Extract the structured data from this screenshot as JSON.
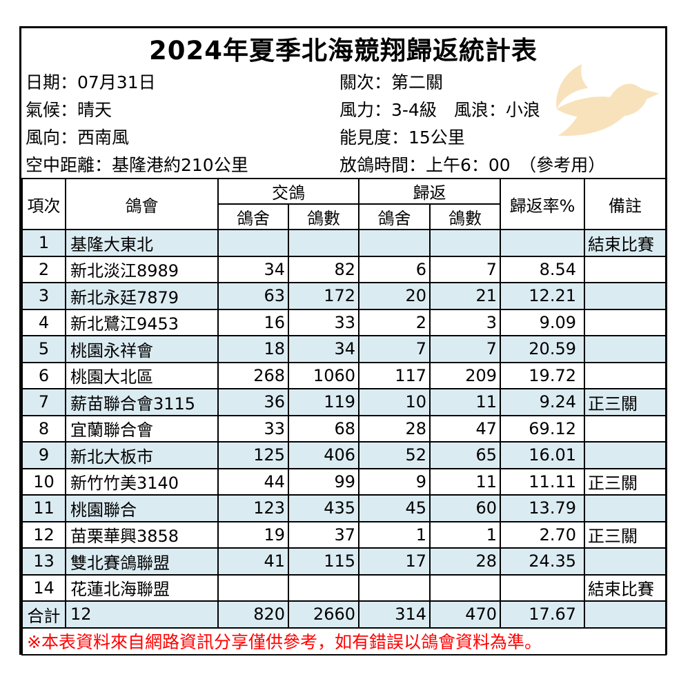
{
  "title": "2024年夏季北海競翔歸返統計表",
  "info": {
    "lines": [
      {
        "left": "日期：07月31日",
        "right": "關次：第二關"
      },
      {
        "left": "氣候：晴天",
        "right": "風力：3-4級　風浪：小浪"
      },
      {
        "left": "風向：西南風",
        "right": "能見度：15公里"
      },
      {
        "left": "空中距離：基隆港約210公里",
        "right": "放鴿時間：上午6：00　（參考用）"
      }
    ]
  },
  "icons": {
    "dove": "flying-dove-silhouette"
  },
  "table": {
    "headers": {
      "index": "項次",
      "club": "鴿會",
      "sent_group": "交鴿",
      "returned_group": "歸返",
      "sub": [
        "鴿舍",
        "鴿數",
        "鴿舍",
        "鴿數"
      ],
      "rate": "歸返率%",
      "note": "備註"
    },
    "rows": [
      {
        "no": "1",
        "club": "基隆大東北",
        "sent_loft": "",
        "sent_count": "",
        "ret_loft": "",
        "ret_count": "",
        "rate": "",
        "note": "結束比賽"
      },
      {
        "no": "2",
        "club": "新北淡江8989",
        "sent_loft": "34",
        "sent_count": "82",
        "ret_loft": "6",
        "ret_count": "7",
        "rate": "8.54",
        "note": ""
      },
      {
        "no": "3",
        "club": "新北永廷7879",
        "sent_loft": "63",
        "sent_count": "172",
        "ret_loft": "20",
        "ret_count": "21",
        "rate": "12.21",
        "note": ""
      },
      {
        "no": "4",
        "club": "新北鷺江9453",
        "sent_loft": "16",
        "sent_count": "33",
        "ret_loft": "2",
        "ret_count": "3",
        "rate": "9.09",
        "note": ""
      },
      {
        "no": "5",
        "club": "桃園永祥會",
        "sent_loft": "18",
        "sent_count": "34",
        "ret_loft": "7",
        "ret_count": "7",
        "rate": "20.59",
        "note": ""
      },
      {
        "no": "6",
        "club": "桃園大北區",
        "sent_loft": "268",
        "sent_count": "1060",
        "ret_loft": "117",
        "ret_count": "209",
        "rate": "19.72",
        "note": ""
      },
      {
        "no": "7",
        "club": "薪苗聯合會3115",
        "sent_loft": "36",
        "sent_count": "119",
        "ret_loft": "10",
        "ret_count": "11",
        "rate": "9.24",
        "note": "正三關"
      },
      {
        "no": "8",
        "club": "宜蘭聯合會",
        "sent_loft": "33",
        "sent_count": "68",
        "ret_loft": "28",
        "ret_count": "47",
        "rate": "69.12",
        "note": ""
      },
      {
        "no": "9",
        "club": "新北大板市",
        "sent_loft": "125",
        "sent_count": "406",
        "ret_loft": "52",
        "ret_count": "65",
        "rate": "16.01",
        "note": ""
      },
      {
        "no": "10",
        "club": "新竹竹美3140",
        "sent_loft": "44",
        "sent_count": "99",
        "ret_loft": "9",
        "ret_count": "11",
        "rate": "11.11",
        "note": "正三關"
      },
      {
        "no": "11",
        "club": "桃園聯合",
        "sent_loft": "123",
        "sent_count": "435",
        "ret_loft": "45",
        "ret_count": "60",
        "rate": "13.79",
        "note": ""
      },
      {
        "no": "12",
        "club": "苗栗華興3858",
        "sent_loft": "19",
        "sent_count": "37",
        "ret_loft": "1",
        "ret_count": "1",
        "rate": "2.70",
        "note": "正三關"
      },
      {
        "no": "13",
        "club": "雙北賽鴿聯盟",
        "sent_loft": "41",
        "sent_count": "115",
        "ret_loft": "17",
        "ret_count": "28",
        "rate": "24.35",
        "note": ""
      },
      {
        "no": "14",
        "club": "花蓮北海聯盟",
        "sent_loft": "",
        "sent_count": "",
        "ret_loft": "",
        "ret_count": "",
        "rate": "",
        "note": "結束比賽"
      }
    ],
    "total": {
      "no": "合計",
      "club": "12",
      "sent_loft": "820",
      "sent_count": "2660",
      "ret_loft": "314",
      "ret_count": "470",
      "rate": "17.67",
      "note": ""
    }
  },
  "footer_note": "※本表資料來自網路資訊分享僅供參考，如有錯誤以鴿會資料為準。",
  "colors": {
    "band_blue": "#dbebf2",
    "note_red": "#ff0000",
    "dove_peach": "#f8e2bc",
    "border_black": "#000000"
  }
}
